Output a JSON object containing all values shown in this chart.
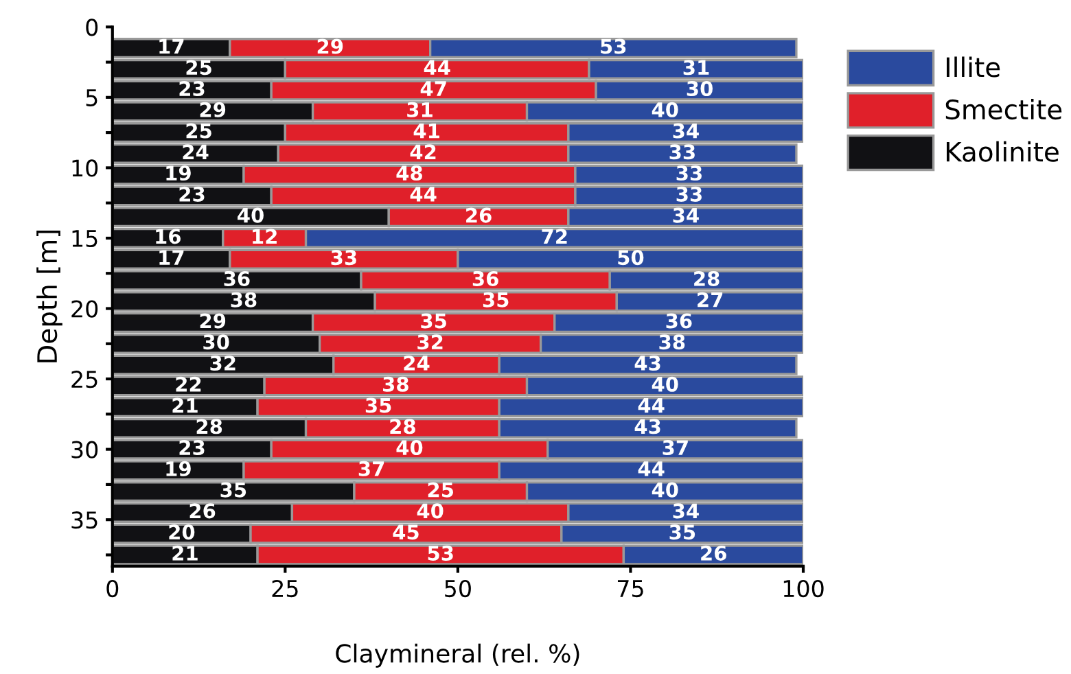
{
  "chart_data": {
    "type": "bar",
    "orientation": "horizontal",
    "stacked": true,
    "data_labels": true,
    "legend": "top right",
    "grid": false,
    "xlabel": "Claymineral (rel. %)",
    "ylabel": "Depth [m]",
    "x": [
      1.5,
      3,
      4.5,
      6,
      7.5,
      9,
      10.5,
      12,
      13.5,
      15,
      16.5,
      18,
      19.5,
      21,
      22.5,
      24,
      25.5,
      27,
      28.5,
      30,
      31.5,
      33,
      34.5,
      36,
      37.5
    ],
    "xlim": [
      0,
      100
    ],
    "xticks": [
      0,
      25,
      50,
      75,
      100
    ],
    "ylim": [
      38.3,
      0
    ],
    "yticks": [
      0,
      {
        "value": 2.5,
        "label": null
      },
      5,
      {
        "value": 7.5,
        "label": null
      },
      10,
      {
        "value": 12.5,
        "label": null
      },
      15,
      {
        "value": 17.5,
        "label": null
      },
      20,
      {
        "value": 22.5,
        "label": null
      },
      25,
      {
        "value": 27.5,
        "label": null
      },
      30,
      {
        "value": 32.5,
        "label": null
      },
      35,
      {
        "value": 37.5,
        "label": null
      }
    ],
    "series": [
      {
        "name": "Kaolinite",
        "color": "#111114",
        "values": [
          17,
          25,
          23,
          29,
          25,
          24,
          19,
          23,
          40,
          16,
          17,
          36,
          38,
          29,
          30,
          32,
          22,
          21,
          28,
          23,
          19,
          35,
          26,
          20,
          21
        ]
      },
      {
        "name": "Smectite",
        "color": "#e0202a",
        "values": [
          29,
          44,
          47,
          31,
          41,
          42,
          48,
          44,
          26,
          12,
          33,
          36,
          35,
          35,
          32,
          24,
          38,
          35,
          28,
          40,
          37,
          25,
          40,
          45,
          53
        ]
      },
      {
        "name": "Illite",
        "color": "#2a4a9e",
        "values": [
          53,
          31,
          30,
          40,
          34,
          33,
          33,
          33,
          34,
          72,
          50,
          28,
          27,
          36,
          38,
          43,
          40,
          44,
          43,
          37,
          44,
          40,
          34,
          35,
          26
        ]
      }
    ]
  }
}
